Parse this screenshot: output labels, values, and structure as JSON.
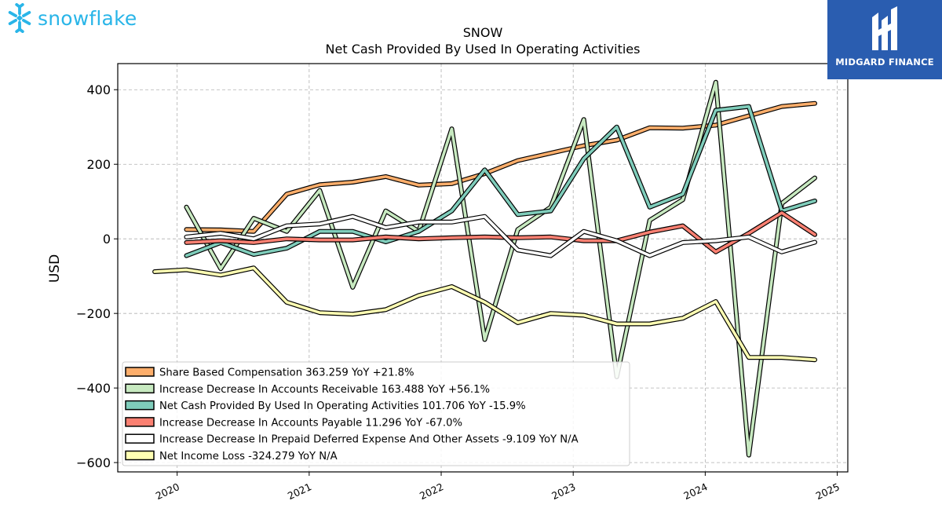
{
  "brand": {
    "name": "snowflake",
    "color": "#29b5e8",
    "icon": "snowflake-icon"
  },
  "badge": {
    "name": "MIDGARD FINANCE",
    "color": "#2a5db0",
    "icon": "midgard-logo-icon"
  },
  "chart_data": {
    "type": "line",
    "title": "SNOW",
    "subtitle": "Net Cash Provided By Used In Operating Activities",
    "ylabel": "USD",
    "xlabel": "",
    "ylim": [
      -625,
      470
    ],
    "xlim": [
      2019.55,
      2025.08
    ],
    "xticks": [
      2020,
      2021,
      2022,
      2023,
      2024,
      2025
    ],
    "xtick_labels": [
      "2020",
      "2021",
      "2022",
      "2023",
      "2024",
      "2025"
    ],
    "yticks": [
      400,
      200,
      0,
      -200,
      -400,
      -600
    ],
    "ytick_labels": [
      "400",
      "200",
      "0",
      "−200",
      "−400",
      "−600"
    ],
    "grid": true,
    "legend_position": "lower-left",
    "series": [
      {
        "name": "Share Based Compensation",
        "legend_label": "Share Based Compensation  363.259 YoY +21.8%",
        "color": "#fdae6b",
        "x": [
          2020.07,
          2020.33,
          2020.58,
          2020.83,
          2021.08,
          2021.33,
          2021.58,
          2021.83,
          2022.08,
          2022.33,
          2022.58,
          2022.83,
          2023.08,
          2023.33,
          2023.58,
          2023.83,
          2024.08,
          2024.33,
          2024.58,
          2024.83
        ],
        "values": [
          25,
          24,
          20,
          120,
          145,
          152,
          167,
          144,
          148,
          175,
          210,
          230,
          250,
          265,
          298,
          297,
          305,
          330,
          355,
          363.259
        ]
      },
      {
        "name": "Increase Decrease In Accounts Receivable",
        "legend_label": "Increase Decrease In Accounts Receivable  163.488 YoY +56.1%",
        "color": "#c7e9c0",
        "x": [
          2020.07,
          2020.33,
          2020.58,
          2020.83,
          2021.08,
          2021.33,
          2021.58,
          2021.83,
          2022.08,
          2022.33,
          2022.58,
          2022.83,
          2023.08,
          2023.33,
          2023.58,
          2023.83,
          2024.08,
          2024.33,
          2024.58,
          2024.83
        ],
        "values": [
          85,
          -80,
          55,
          20,
          130,
          -130,
          75,
          20,
          295,
          -270,
          25,
          85,
          320,
          -370,
          50,
          105,
          420,
          -580,
          95,
          163.488
        ]
      },
      {
        "name": "Net Cash Provided By Used In Operating Activities",
        "legend_label": "Net Cash Provided By Used In Operating Activities  101.706 YoY -15.9%",
        "color": "#7fcdbb",
        "x": [
          2020.07,
          2020.33,
          2020.58,
          2020.83,
          2021.08,
          2021.33,
          2021.58,
          2021.83,
          2022.08,
          2022.33,
          2022.58,
          2022.83,
          2023.08,
          2023.33,
          2023.58,
          2023.83,
          2024.08,
          2024.33,
          2024.58,
          2024.83
        ],
        "values": [
          -45,
          -10,
          -42,
          -25,
          20,
          20,
          -8,
          20,
          75,
          185,
          65,
          75,
          215,
          300,
          85,
          120,
          345,
          355,
          75,
          101.706
        ]
      },
      {
        "name": "Increase Decrease In Accounts Payable",
        "legend_label": "Increase Decrease In Accounts Payable  11.296 YoY -67.0%",
        "color": "#fb8072",
        "x": [
          2020.07,
          2020.33,
          2020.58,
          2020.83,
          2021.08,
          2021.33,
          2021.58,
          2021.83,
          2022.08,
          2022.33,
          2022.58,
          2022.83,
          2023.08,
          2023.33,
          2023.58,
          2023.83,
          2024.08,
          2024.33,
          2024.58,
          2024.83
        ],
        "values": [
          -10,
          -5,
          -10,
          0,
          -3,
          -3,
          5,
          0,
          3,
          5,
          3,
          5,
          -5,
          -5,
          18,
          35,
          -35,
          15,
          70,
          11.296
        ]
      },
      {
        "name": "Increase Decrease In Prepaid Deferred Expense And Other Assets",
        "legend_label": "Increase Decrease In Prepaid Deferred Expense And Other Assets  -9.109 YoY N/A",
        "color": "#ffffff",
        "x": [
          2020.07,
          2020.33,
          2020.58,
          2020.83,
          2021.08,
          2021.33,
          2021.58,
          2021.83,
          2022.08,
          2022.33,
          2022.58,
          2022.83,
          2023.08,
          2023.33,
          2023.58,
          2023.83,
          2024.08,
          2024.33,
          2024.58,
          2024.83
        ],
        "values": [
          5,
          15,
          0,
          35,
          40,
          60,
          30,
          45,
          45,
          60,
          -30,
          -45,
          20,
          -5,
          -45,
          -10,
          -5,
          5,
          -35,
          -9.109
        ]
      },
      {
        "name": "Net Income Loss",
        "legend_label": "Net Income Loss  -324.279 YoY N/A",
        "color": "#ffffb3",
        "x": [
          2019.83,
          2020.07,
          2020.33,
          2020.58,
          2020.83,
          2021.08,
          2021.33,
          2021.58,
          2021.83,
          2022.08,
          2022.33,
          2022.58,
          2022.83,
          2023.08,
          2023.33,
          2023.58,
          2023.83,
          2024.08,
          2024.33,
          2024.58,
          2024.83
        ],
        "values": [
          -88,
          -83,
          -97,
          -78,
          -170,
          -198,
          -202,
          -190,
          -152,
          -128,
          -170,
          -225,
          -200,
          -205,
          -228,
          -228,
          -213,
          -168,
          -318,
          -318,
          -324.279
        ]
      }
    ]
  }
}
